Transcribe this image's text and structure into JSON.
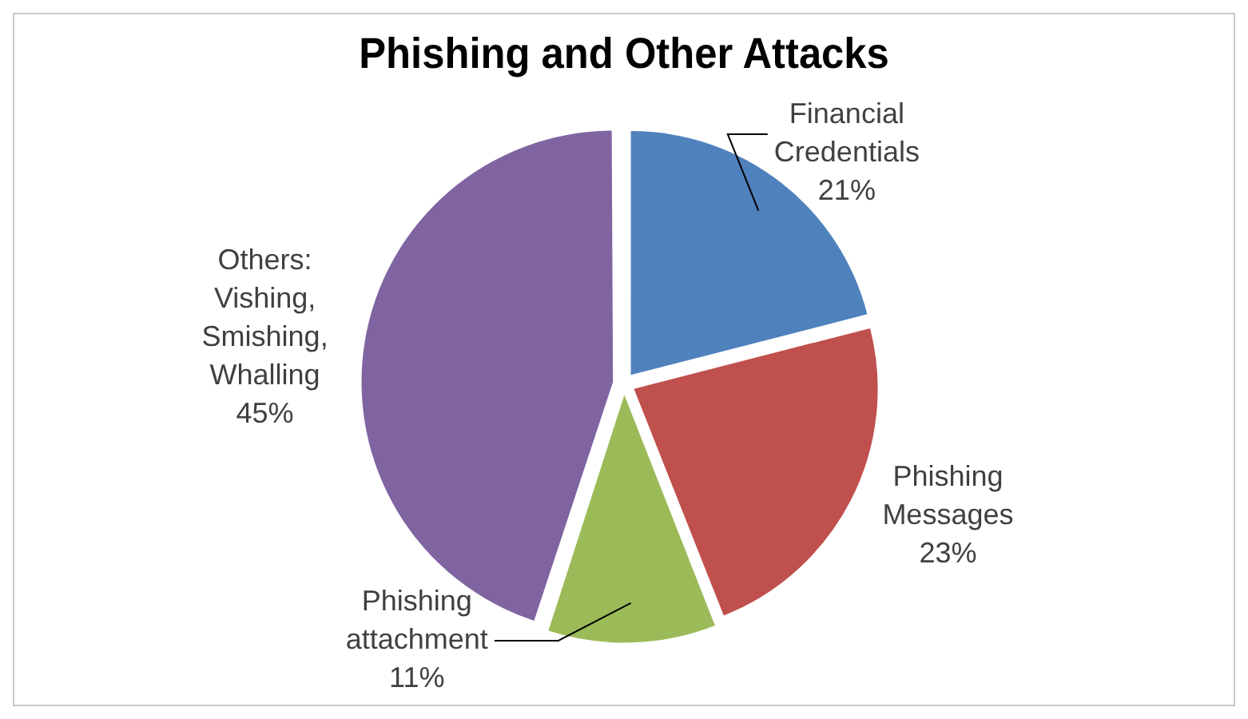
{
  "chart_data": {
    "type": "pie",
    "title": "Phishing and Other Attacks",
    "categories": [
      "Financial Credentials",
      "Phishing Messages",
      "Phishing attachment",
      "Others: Vishing, Smishing, Whalling"
    ],
    "values": [
      21,
      23,
      11,
      45
    ],
    "value_labels": [
      "21%",
      "23%",
      "11%",
      "45%"
    ],
    "colors": [
      "#4f81bd",
      "#c0504d",
      "#9bbb59",
      "#8064a2"
    ],
    "legend": false
  }
}
